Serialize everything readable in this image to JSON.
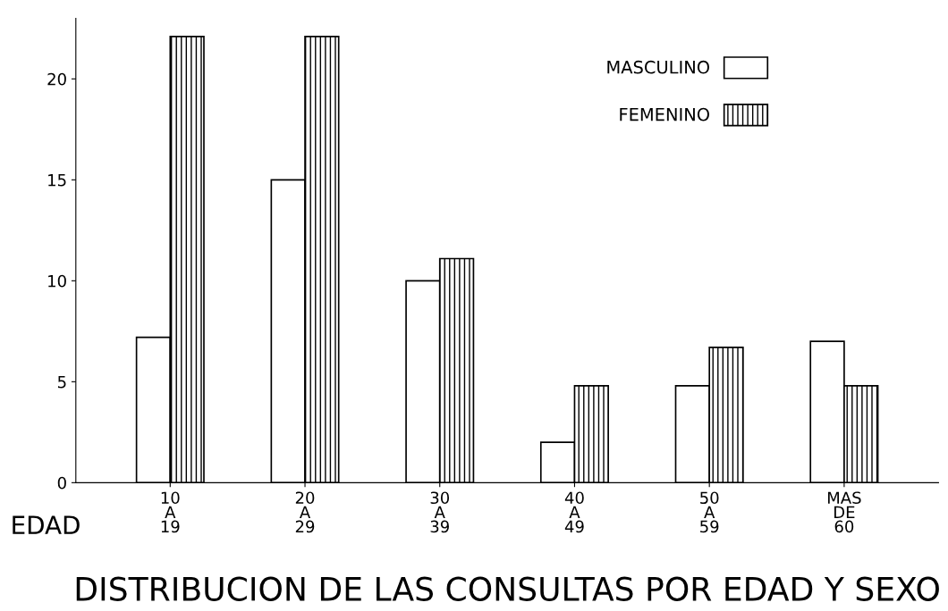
{
  "chart_data": {
    "type": "bar",
    "title": "DISTRIBUCION DE LAS CONSULTAS POR EDAD Y SEXO",
    "xlabel": "EDAD",
    "categories": [
      "10\nA\n19",
      "20\nA\n29",
      "30\nA\n39",
      "40\nA\n49",
      "50\nA\n59",
      "MAS\nDE\n60"
    ],
    "series": [
      {
        "name": "MASCULINO",
        "color": "#ffffff",
        "values": [
          7.2,
          15,
          10,
          2,
          4.8,
          7
        ]
      },
      {
        "name": "FEMENINO",
        "color": "#000000",
        "values": [
          22.1,
          22.1,
          11.1,
          4.8,
          6.7,
          4.8
        ]
      }
    ],
    "ylim": [
      0,
      23
    ],
    "yticks": [
      0,
      5,
      10,
      15,
      20
    ],
    "grid": false,
    "legend": "top right"
  }
}
